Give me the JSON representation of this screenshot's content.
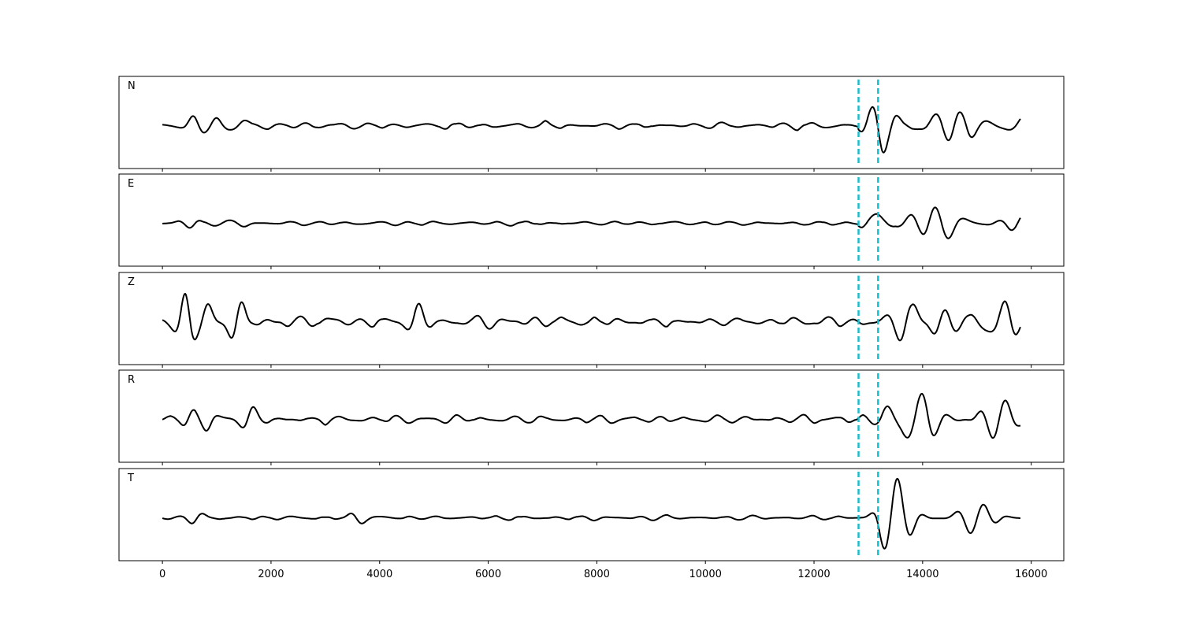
{
  "chart_data": {
    "type": "line",
    "title": "",
    "xlabel": "",
    "ylabel": "",
    "xlim": [
      -800,
      16600
    ],
    "x_ticks": [
      "0",
      "2000",
      "4000",
      "6000",
      "8000",
      "10000",
      "12000",
      "14000",
      "16000"
    ],
    "x_tick_values": [
      0,
      2000,
      4000,
      6000,
      8000,
      10000,
      12000,
      14000,
      16000
    ],
    "trace_x_range": [
      0,
      15800
    ],
    "markers": [
      {
        "name": "pick-1",
        "x": 12820,
        "color": "#17becf",
        "style": "dashed"
      },
      {
        "name": "pick-2",
        "x": 13180,
        "color": "#17becf",
        "style": "dashed"
      }
    ],
    "grid": false,
    "panels": [
      {
        "label": "N",
        "ylim": [
          -1,
          1
        ],
        "noise_level": 0.08,
        "bursts": [
          {
            "x": 600,
            "amp": 0.25
          },
          {
            "x": 950,
            "amp": 0.2
          },
          {
            "x": 1500,
            "amp": 0.15
          }
        ],
        "event_envelope": [
          {
            "x": 12820,
            "amp": 0.15
          },
          {
            "x": 13250,
            "amp": 0.95
          },
          {
            "x": 13700,
            "amp": 0.7
          },
          {
            "x": 14200,
            "amp": 0.55
          },
          {
            "x": 14700,
            "amp": 0.45
          },
          {
            "x": 15300,
            "amp": 0.35
          },
          {
            "x": 15800,
            "amp": 0.3
          }
        ]
      },
      {
        "label": "E",
        "ylim": [
          -1,
          1
        ],
        "noise_level": 0.05,
        "bursts": [
          {
            "x": 500,
            "amp": 0.18
          },
          {
            "x": 1550,
            "amp": 0.12
          }
        ],
        "event_envelope": [
          {
            "x": 12820,
            "amp": 0.1
          },
          {
            "x": 13180,
            "amp": 1.0
          },
          {
            "x": 13600,
            "amp": 0.5
          },
          {
            "x": 14300,
            "amp": 0.45
          },
          {
            "x": 14800,
            "amp": 0.35
          },
          {
            "x": 15400,
            "amp": 0.25
          },
          {
            "x": 15800,
            "amp": 0.2
          }
        ]
      },
      {
        "label": "Z",
        "ylim": [
          -1,
          1
        ],
        "noise_level": 0.12,
        "bursts": [
          {
            "x": 450,
            "amp": 0.9
          },
          {
            "x": 850,
            "amp": 0.55
          },
          {
            "x": 1350,
            "amp": 0.55
          },
          {
            "x": 2200,
            "amp": 0.3
          },
          {
            "x": 4700,
            "amp": 0.3
          }
        ],
        "event_envelope": [
          {
            "x": 12820,
            "amp": 0.12
          },
          {
            "x": 13200,
            "amp": 0.55
          },
          {
            "x": 13800,
            "amp": 0.6
          },
          {
            "x": 14500,
            "amp": 0.9
          },
          {
            "x": 15000,
            "amp": 0.55
          },
          {
            "x": 15600,
            "amp": 0.5
          },
          {
            "x": 15800,
            "amp": 0.3
          }
        ]
      },
      {
        "label": "R",
        "ylim": [
          -1,
          1
        ],
        "noise_level": 0.09,
        "bursts": [
          {
            "x": 500,
            "amp": 0.25
          },
          {
            "x": 850,
            "amp": 0.35
          },
          {
            "x": 1600,
            "amp": 0.25
          }
        ],
        "event_envelope": [
          {
            "x": 12820,
            "amp": 0.18
          },
          {
            "x": 13250,
            "amp": 1.0
          },
          {
            "x": 13800,
            "amp": 0.55
          },
          {
            "x": 14700,
            "amp": 0.8
          },
          {
            "x": 15200,
            "amp": 0.4
          },
          {
            "x": 15800,
            "amp": 0.3
          }
        ]
      },
      {
        "label": "T",
        "ylim": [
          -1,
          1
        ],
        "noise_level": 0.05,
        "bursts": [
          {
            "x": 600,
            "amp": 0.12
          },
          {
            "x": 3600,
            "amp": 0.12
          }
        ],
        "event_envelope": [
          {
            "x": 12820,
            "amp": 0.12
          },
          {
            "x": 13220,
            "amp": 1.0
          },
          {
            "x": 13700,
            "amp": 0.65
          },
          {
            "x": 14300,
            "amp": 0.45
          },
          {
            "x": 15000,
            "amp": 0.3
          },
          {
            "x": 15800,
            "amp": 0.25
          }
        ]
      }
    ]
  }
}
